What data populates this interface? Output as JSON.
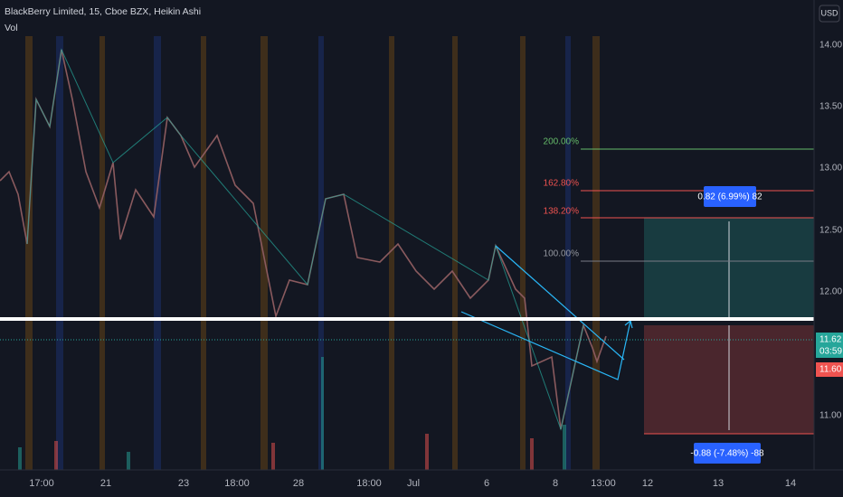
{
  "header": {
    "title": "BlackBerry Limited, 15, Cboe BZX, Heikin Ashi",
    "indicator": "Vol",
    "currency": "USD"
  },
  "price_axis": {
    "labels": [
      "14.00",
      "13.50",
      "13.00",
      "12.50",
      "12.00",
      "11.00"
    ],
    "last_price": "11.62",
    "countdown": "03:59",
    "bid": "11.60"
  },
  "time_axis": {
    "labels": [
      "17:00",
      "21",
      "23",
      "18:00",
      "28",
      "18:00",
      "Jul",
      "6",
      "8",
      "13:00",
      "12",
      "13",
      "14"
    ]
  },
  "fibonacci": {
    "levels": [
      "200.00%",
      "162.80%",
      "138.20%",
      "100.00%"
    ]
  },
  "position": {
    "target": "0.82 (6.99%) 82",
    "stop": "-0.88 (-7.48%) -88"
  }
}
